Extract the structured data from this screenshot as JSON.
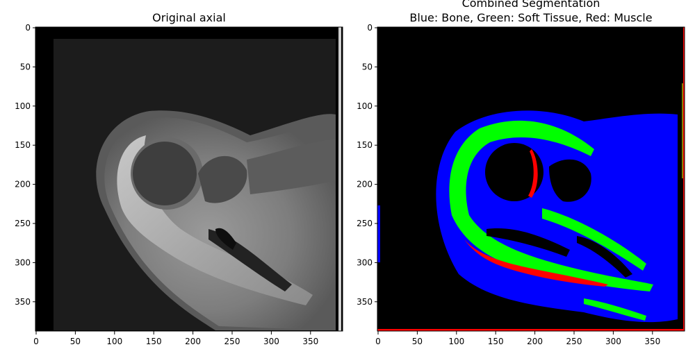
{
  "panels": [
    {
      "title_lines": [
        "Original axial"
      ],
      "x_ticks": [
        "0",
        "50",
        "100",
        "150",
        "200",
        "250",
        "300",
        "350"
      ],
      "y_ticks": [
        "0",
        "50",
        "100",
        "150",
        "200",
        "250",
        "300",
        "350"
      ]
    },
    {
      "title_lines": [
        "Combined Segmentation",
        "Blue: Bone, Green: Soft Tissue, Red: Muscle"
      ],
      "x_ticks": [
        "0",
        "50",
        "100",
        "150",
        "200",
        "250",
        "300",
        "350"
      ],
      "y_ticks": [
        "0",
        "50",
        "100",
        "150",
        "200",
        "250",
        "300",
        "350"
      ]
    }
  ],
  "colors": {
    "bone": "#0000ff",
    "soft_tissue": "#00ff00",
    "muscle": "#ff0000",
    "background": "#000000"
  }
}
